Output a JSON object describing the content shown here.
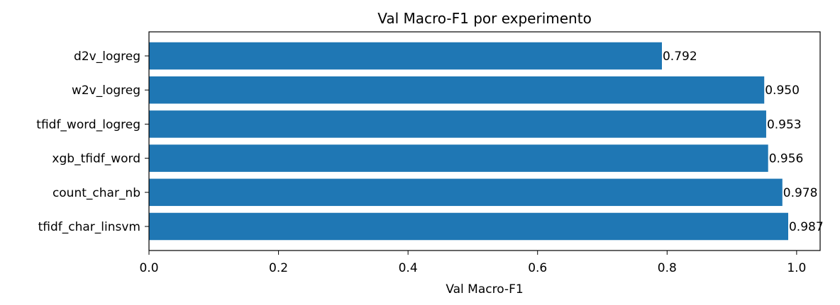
{
  "chart_data": {
    "type": "bar",
    "orientation": "horizontal",
    "title": "Val Macro-F1 por experimento",
    "xlabel": "Val Macro-F1",
    "ylabel": "",
    "categories": [
      "d2v_logreg",
      "w2v_logreg",
      "tfidf_word_logreg",
      "xgb_tfidf_word",
      "count_char_nb",
      "tfidf_char_linsvm"
    ],
    "values": [
      0.792,
      0.95,
      0.953,
      0.956,
      0.978,
      0.987
    ],
    "value_labels": [
      "0.792",
      "0.950",
      "0.953",
      "0.956",
      "0.978",
      "0.987"
    ],
    "xlim": [
      0,
      1.0363
    ],
    "xticks": [
      0.0,
      0.2,
      0.4,
      0.6,
      0.8,
      1.0
    ],
    "xtick_labels": [
      "0.0",
      "0.2",
      "0.4",
      "0.6",
      "0.8",
      "1.0"
    ],
    "bar_color": "#1f77b4",
    "grid": false,
    "legend": "none"
  }
}
